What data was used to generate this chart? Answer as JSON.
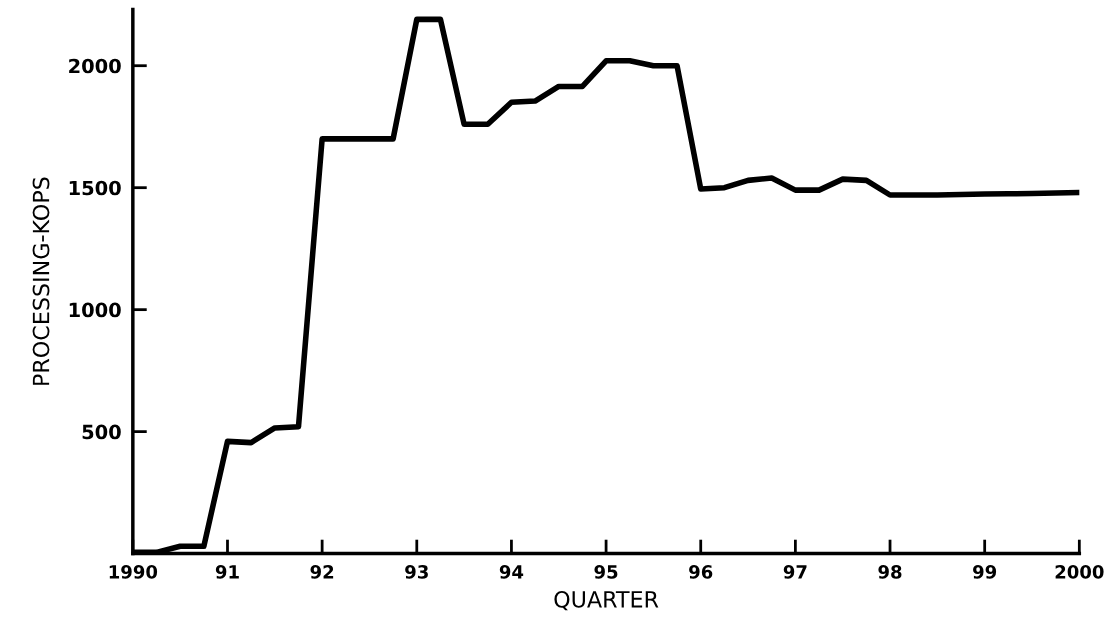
{
  "chart_data": {
    "type": "line",
    "xlabel": "QUARTER",
    "ylabel": "PROCESSING-KOPS",
    "x": [
      1990.0,
      1990.25,
      1990.5,
      1990.75,
      1991.0,
      1991.25,
      1991.5,
      1991.75,
      1992.0,
      1992.25,
      1992.5,
      1992.75,
      1993.0,
      1993.25,
      1993.5,
      1993.75,
      1994.0,
      1994.25,
      1994.5,
      1994.75,
      1995.0,
      1995.25,
      1995.5,
      1995.75,
      1996.0,
      1996.25,
      1996.5,
      1996.75,
      1997.0,
      1997.25,
      1997.5,
      1997.75,
      1998.0,
      1998.25,
      1998.5,
      1998.75,
      1999.0,
      1999.25,
      1999.5,
      1999.75,
      2000.0
    ],
    "series": [
      {
        "color": "#000000",
        "values": [
          5,
          5,
          30,
          30,
          460,
          455,
          515,
          520,
          1700,
          1700,
          1700,
          1700,
          2190,
          2190,
          1760,
          1760,
          1850,
          1855,
          1915,
          1915,
          2020,
          2020,
          2000,
          2000,
          1495,
          1500,
          1530,
          1540,
          1490,
          1490,
          1535,
          1530,
          1470,
          1470,
          1470,
          1472,
          1474,
          1475,
          1476,
          1478,
          1480
        ]
      }
    ],
    "xlim": [
      1990,
      2000
    ],
    "ylim": [
      0,
      2230
    ],
    "xticks": [
      {
        "value": 1990,
        "label": "1990"
      },
      {
        "value": 1991,
        "label": "91"
      },
      {
        "value": 1992,
        "label": "92"
      },
      {
        "value": 1993,
        "label": "93"
      },
      {
        "value": 1994,
        "label": "94"
      },
      {
        "value": 1995,
        "label": "95"
      },
      {
        "value": 1996,
        "label": "96"
      },
      {
        "value": 1997,
        "label": "97"
      },
      {
        "value": 1998,
        "label": "98"
      },
      {
        "value": 1999,
        "label": "99"
      },
      {
        "value": 2000,
        "label": "2000"
      }
    ],
    "yticks": [
      500,
      1000,
      1500,
      2000
    ],
    "marker": "none",
    "line_style": "solid"
  }
}
